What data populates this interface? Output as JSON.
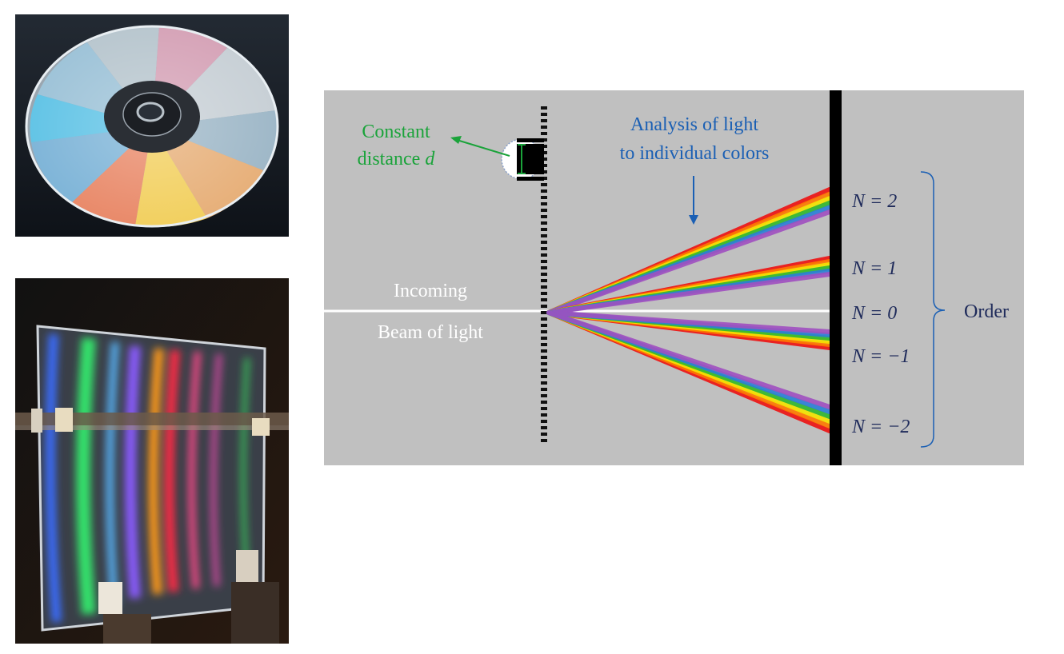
{
  "photos": {
    "cd": "cd-disc-photo",
    "grating": "transmission-grating-photo"
  },
  "diagram": {
    "constant_distance_line1": "Constant",
    "constant_distance_line2": "distance",
    "constant_distance_var": "d",
    "analysis_line1": "Analysis of light",
    "analysis_line2": "to individual colors",
    "incoming_line1": "Incoming",
    "incoming_line2": "Beam of light",
    "orders": [
      "N = 2",
      "N = 1",
      "N = 0",
      "N = −1",
      "N = −2"
    ],
    "order_label": "Order"
  },
  "colors": {
    "background": "#c0c0c0",
    "label_green": "#1aa33a",
    "label_blue": "#1a5fb4",
    "spectrum": [
      "#ee1111",
      "#ff7a00",
      "#f5e400",
      "#2fb82f",
      "#2b7fd8",
      "#a050c0"
    ]
  }
}
